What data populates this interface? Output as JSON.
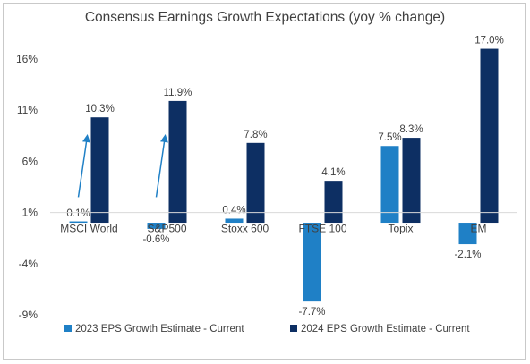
{
  "chart_data": {
    "type": "bar",
    "title": "Consensus Earnings Growth Expectations (yoy % change)",
    "xlabel": "",
    "ylabel": "",
    "categories": [
      "MSCI World",
      "S&P500",
      "Stoxx 600",
      "FTSE 100",
      "Topix",
      "EM"
    ],
    "series": [
      {
        "name": "2023 EPS Growth Estimate - Current",
        "color": "#1f80c6",
        "values": [
          0.1,
          -0.6,
          0.4,
          -7.7,
          7.5,
          -2.1
        ],
        "labels": [
          "0.1%",
          "-0.6%",
          "0.4%",
          "-7.7%",
          "7.5%",
          "-2.1%"
        ]
      },
      {
        "name": "2024 EPS Growth Estimate - Current",
        "color": "#0d2f63",
        "values": [
          10.3,
          11.9,
          7.8,
          4.1,
          8.3,
          17.0
        ],
        "labels": [
          "10.3%",
          "11.9%",
          "7.8%",
          "4.1%",
          "8.3%",
          "17.0%"
        ]
      }
    ],
    "yticks": [
      16,
      11,
      6,
      1,
      -4,
      -9
    ],
    "ytick_labels": [
      "16%",
      "11%",
      "6%",
      "1%",
      "-4%",
      "-9%"
    ],
    "ylim": [
      -9,
      16
    ],
    "grid": false,
    "legend_position": "bottom",
    "arrows": [
      {
        "category": "MSCI World",
        "color": "#1f80c6"
      },
      {
        "category": "S&P500",
        "color": "#1f80c6"
      }
    ]
  }
}
